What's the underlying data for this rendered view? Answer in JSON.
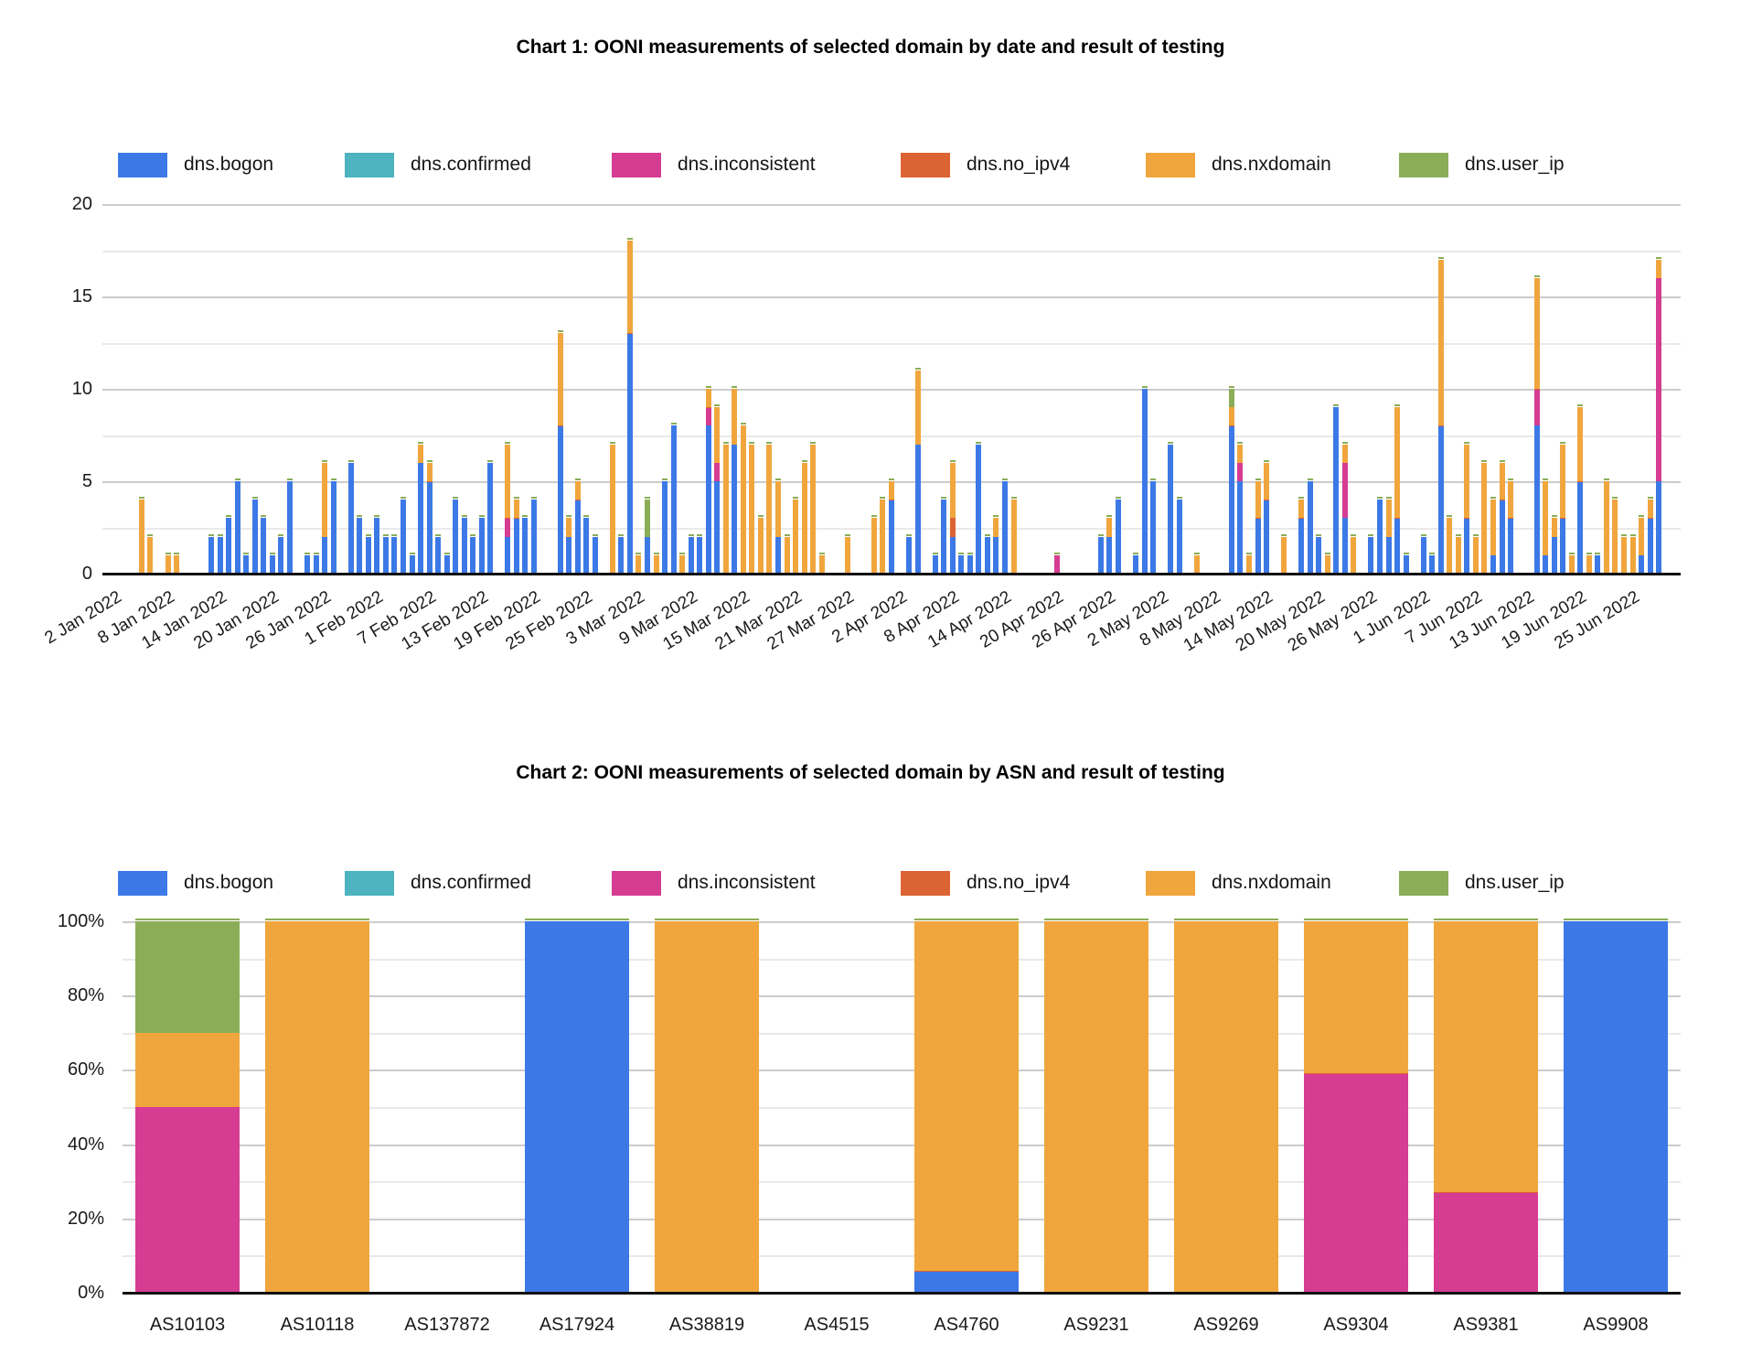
{
  "palette": {
    "bogon": "#3C79E6",
    "confirmed": "#4DB3BF",
    "inconsistent": "#D53C92",
    "no_ipv4": "#DC6333",
    "nxdomain": "#F0A63D",
    "user_ip": "#8BAD58"
  },
  "legend": {
    "items": [
      {
        "key": "bogon",
        "label": "dns.bogon"
      },
      {
        "key": "confirmed",
        "label": "dns.confirmed"
      },
      {
        "key": "inconsistent",
        "label": "dns.inconsistent"
      },
      {
        "key": "no_ipv4",
        "label": "dns.no_ipv4"
      },
      {
        "key": "nxdomain",
        "label": "dns.nxdomain"
      },
      {
        "key": "user_ip",
        "label": "dns.user_ip"
      }
    ]
  },
  "chart_data": [
    {
      "type": "bar",
      "stacked": true,
      "title": "Chart 1: OONI measurements of selected domain by date and result of testing",
      "xlabel": "",
      "ylabel": "",
      "ylim": [
        0,
        20
      ],
      "y_ticks": [
        0,
        5,
        10,
        15,
        20
      ],
      "grid": true,
      "legend_position": "top",
      "date_range_days": 181,
      "x_tick_days": [
        1,
        7,
        13,
        19,
        25,
        31,
        37,
        43,
        49,
        55,
        61,
        67,
        73,
        79,
        85,
        91,
        97,
        103,
        109,
        115,
        121,
        127,
        133,
        139,
        145,
        151,
        157,
        163,
        169,
        175
      ],
      "x_tick_labels": [
        "2 Jan 2022",
        "8 Jan 2022",
        "14 Jan 2022",
        "20 Jan 2022",
        "26 Jan 2022",
        "1 Feb 2022",
        "7 Feb 2022",
        "13 Feb 2022",
        "19 Feb 2022",
        "25 Feb 2022",
        "3 Mar 2022",
        "9 Mar 2022",
        "15 Mar 2022",
        "21 Mar 2022",
        "27 Mar 2022",
        "2 Apr 2022",
        "8 Apr 2022",
        "14 Apr 2022",
        "20 Apr 2022",
        "26 Apr 2022",
        "2 May 2022",
        "8 May 2022",
        "14 May 2022",
        "20 May 2022",
        "26 May 2022",
        "1 Jun 2022",
        "7 Jun 2022",
        "13 Jun 2022",
        "19 Jun 2022",
        "25 Jun 2022"
      ],
      "series_order": [
        "bogon",
        "confirmed",
        "inconsistent",
        "no_ipv4",
        "nxdomain",
        "user_ip"
      ],
      "bars": [
        {
          "d": 4,
          "nxdomain": 4
        },
        {
          "d": 5,
          "nxdomain": 2
        },
        {
          "d": 7,
          "nxdomain": 1
        },
        {
          "d": 8,
          "nxdomain": 1
        },
        {
          "d": 12,
          "bogon": 2
        },
        {
          "d": 13,
          "bogon": 2
        },
        {
          "d": 14,
          "bogon": 3
        },
        {
          "d": 15,
          "bogon": 5
        },
        {
          "d": 16,
          "bogon": 1
        },
        {
          "d": 17,
          "bogon": 4
        },
        {
          "d": 18,
          "bogon": 3
        },
        {
          "d": 19,
          "bogon": 1
        },
        {
          "d": 20,
          "bogon": 2
        },
        {
          "d": 21,
          "bogon": 5
        },
        {
          "d": 23,
          "bogon": 1
        },
        {
          "d": 24,
          "bogon": 1
        },
        {
          "d": 25,
          "bogon": 2,
          "nxdomain": 4
        },
        {
          "d": 26,
          "bogon": 5
        },
        {
          "d": 28,
          "bogon": 6
        },
        {
          "d": 29,
          "bogon": 3
        },
        {
          "d": 30,
          "bogon": 2
        },
        {
          "d": 31,
          "bogon": 3
        },
        {
          "d": 32,
          "bogon": 2
        },
        {
          "d": 33,
          "bogon": 2
        },
        {
          "d": 34,
          "bogon": 4
        },
        {
          "d": 35,
          "bogon": 1
        },
        {
          "d": 36,
          "bogon": 6,
          "nxdomain": 1
        },
        {
          "d": 37,
          "bogon": 5,
          "nxdomain": 1
        },
        {
          "d": 38,
          "bogon": 2
        },
        {
          "d": 39,
          "bogon": 1
        },
        {
          "d": 40,
          "bogon": 4
        },
        {
          "d": 41,
          "bogon": 3
        },
        {
          "d": 42,
          "bogon": 2
        },
        {
          "d": 43,
          "bogon": 3
        },
        {
          "d": 44,
          "bogon": 6
        },
        {
          "d": 46,
          "bogon": 2,
          "inconsistent": 1,
          "nxdomain": 4
        },
        {
          "d": 47,
          "bogon": 3,
          "nxdomain": 1
        },
        {
          "d": 48,
          "bogon": 3
        },
        {
          "d": 49,
          "bogon": 4
        },
        {
          "d": 52,
          "bogon": 8,
          "nxdomain": 5
        },
        {
          "d": 53,
          "bogon": 2,
          "nxdomain": 1
        },
        {
          "d": 54,
          "bogon": 4,
          "nxdomain": 1
        },
        {
          "d": 55,
          "bogon": 3
        },
        {
          "d": 56,
          "bogon": 2
        },
        {
          "d": 58,
          "nxdomain": 7
        },
        {
          "d": 59,
          "bogon": 2
        },
        {
          "d": 60,
          "bogon": 13,
          "nxdomain": 5
        },
        {
          "d": 61,
          "nxdomain": 1
        },
        {
          "d": 62,
          "bogon": 2,
          "user_ip": 2
        },
        {
          "d": 63,
          "nxdomain": 1
        },
        {
          "d": 64,
          "bogon": 5
        },
        {
          "d": 65,
          "bogon": 8
        },
        {
          "d": 66,
          "nxdomain": 1
        },
        {
          "d": 67,
          "bogon": 2
        },
        {
          "d": 68,
          "bogon": 2
        },
        {
          "d": 69,
          "bogon": 8,
          "inconsistent": 1,
          "nxdomain": 1
        },
        {
          "d": 70,
          "bogon": 5,
          "inconsistent": 1,
          "nxdomain": 3
        },
        {
          "d": 71,
          "nxdomain": 7
        },
        {
          "d": 72,
          "bogon": 7,
          "nxdomain": 3
        },
        {
          "d": 73,
          "nxdomain": 8
        },
        {
          "d": 74,
          "nxdomain": 7
        },
        {
          "d": 75,
          "nxdomain": 3
        },
        {
          "d": 76,
          "nxdomain": 7
        },
        {
          "d": 77,
          "bogon": 2,
          "nxdomain": 3
        },
        {
          "d": 78,
          "nxdomain": 2
        },
        {
          "d": 79,
          "nxdomain": 4
        },
        {
          "d": 80,
          "nxdomain": 6
        },
        {
          "d": 81,
          "nxdomain": 7
        },
        {
          "d": 82,
          "nxdomain": 1
        },
        {
          "d": 85,
          "nxdomain": 2
        },
        {
          "d": 88,
          "nxdomain": 3
        },
        {
          "d": 89,
          "nxdomain": 4
        },
        {
          "d": 90,
          "bogon": 4,
          "nxdomain": 1
        },
        {
          "d": 92,
          "bogon": 2
        },
        {
          "d": 93,
          "bogon": 7,
          "nxdomain": 4
        },
        {
          "d": 95,
          "bogon": 1
        },
        {
          "d": 96,
          "bogon": 4
        },
        {
          "d": 97,
          "bogon": 2,
          "no_ipv4": 1,
          "nxdomain": 3
        },
        {
          "d": 98,
          "bogon": 1
        },
        {
          "d": 99,
          "bogon": 1
        },
        {
          "d": 100,
          "bogon": 7
        },
        {
          "d": 101,
          "bogon": 2
        },
        {
          "d": 102,
          "bogon": 2,
          "nxdomain": 1
        },
        {
          "d": 103,
          "bogon": 5
        },
        {
          "d": 104,
          "nxdomain": 4
        },
        {
          "d": 109,
          "inconsistent": 1
        },
        {
          "d": 114,
          "bogon": 2
        },
        {
          "d": 115,
          "bogon": 2,
          "nxdomain": 1
        },
        {
          "d": 116,
          "bogon": 4
        },
        {
          "d": 118,
          "bogon": 1
        },
        {
          "d": 119,
          "bogon": 10
        },
        {
          "d": 120,
          "bogon": 5
        },
        {
          "d": 122,
          "bogon": 7
        },
        {
          "d": 123,
          "bogon": 4
        },
        {
          "d": 125,
          "nxdomain": 1
        },
        {
          "d": 129,
          "bogon": 8,
          "nxdomain": 1,
          "user_ip": 1
        },
        {
          "d": 130,
          "bogon": 5,
          "inconsistent": 1,
          "nxdomain": 1
        },
        {
          "d": 131,
          "nxdomain": 1
        },
        {
          "d": 132,
          "bogon": 3,
          "nxdomain": 2
        },
        {
          "d": 133,
          "bogon": 4,
          "nxdomain": 2
        },
        {
          "d": 135,
          "nxdomain": 2
        },
        {
          "d": 137,
          "bogon": 3,
          "nxdomain": 1
        },
        {
          "d": 138,
          "bogon": 5
        },
        {
          "d": 139,
          "bogon": 2
        },
        {
          "d": 140,
          "nxdomain": 1
        },
        {
          "d": 141,
          "bogon": 9
        },
        {
          "d": 142,
          "bogon": 3,
          "inconsistent": 3,
          "nxdomain": 1
        },
        {
          "d": 143,
          "nxdomain": 2
        },
        {
          "d": 145,
          "bogon": 2
        },
        {
          "d": 146,
          "bogon": 4
        },
        {
          "d": 147,
          "bogon": 2,
          "nxdomain": 2
        },
        {
          "d": 148,
          "bogon": 3,
          "nxdomain": 6
        },
        {
          "d": 149,
          "bogon": 1
        },
        {
          "d": 151,
          "bogon": 2
        },
        {
          "d": 152,
          "bogon": 1
        },
        {
          "d": 153,
          "bogon": 8,
          "nxdomain": 9
        },
        {
          "d": 154,
          "nxdomain": 3
        },
        {
          "d": 155,
          "nxdomain": 2
        },
        {
          "d": 156,
          "bogon": 3,
          "nxdomain": 4
        },
        {
          "d": 157,
          "nxdomain": 2
        },
        {
          "d": 158,
          "nxdomain": 6
        },
        {
          "d": 159,
          "bogon": 1,
          "nxdomain": 3
        },
        {
          "d": 160,
          "bogon": 4,
          "nxdomain": 2
        },
        {
          "d": 161,
          "bogon": 3,
          "nxdomain": 2
        },
        {
          "d": 164,
          "bogon": 8,
          "inconsistent": 2,
          "nxdomain": 6
        },
        {
          "d": 165,
          "bogon": 1,
          "nxdomain": 4
        },
        {
          "d": 166,
          "bogon": 2,
          "nxdomain": 1
        },
        {
          "d": 167,
          "bogon": 3,
          "nxdomain": 4
        },
        {
          "d": 168,
          "nxdomain": 1
        },
        {
          "d": 169,
          "bogon": 5,
          "nxdomain": 4
        },
        {
          "d": 170,
          "nxdomain": 1
        },
        {
          "d": 171,
          "bogon": 1
        },
        {
          "d": 172,
          "nxdomain": 5
        },
        {
          "d": 173,
          "nxdomain": 4
        },
        {
          "d": 174,
          "nxdomain": 2
        },
        {
          "d": 175,
          "nxdomain": 2
        },
        {
          "d": 176,
          "bogon": 1,
          "nxdomain": 2
        },
        {
          "d": 177,
          "bogon": 3,
          "nxdomain": 1
        },
        {
          "d": 178,
          "bogon": 5,
          "inconsistent": 11,
          "nxdomain": 1
        }
      ]
    },
    {
      "type": "bar",
      "stacked": "percent",
      "title": "Chart 2: OONI measurements of selected domain by ASN and result of testing",
      "xlabel": "",
      "ylabel": "",
      "ylim": [
        0,
        100
      ],
      "y_ticks": [
        0,
        20,
        40,
        60,
        80,
        100
      ],
      "y_tick_labels": [
        "0%",
        "20%",
        "40%",
        "60%",
        "80%",
        "100%"
      ],
      "grid": true,
      "legend_position": "top",
      "categories": [
        "AS10103",
        "AS10118",
        "AS137872",
        "AS17924",
        "AS38819",
        "AS4515",
        "AS4760",
        "AS9231",
        "AS9269",
        "AS9304",
        "AS9381",
        "AS9908"
      ],
      "series_order": [
        "bogon",
        "confirmed",
        "inconsistent",
        "no_ipv4",
        "nxdomain",
        "user_ip"
      ],
      "bars": [
        {
          "category": "AS10103",
          "inconsistent": 50,
          "nxdomain": 20,
          "user_ip": 30
        },
        {
          "category": "AS10118",
          "nxdomain": 100
        },
        {
          "category": "AS17924",
          "bogon": 100
        },
        {
          "category": "AS38819",
          "nxdomain": 100
        },
        {
          "category": "AS4760",
          "bogon": 6,
          "nxdomain": 94
        },
        {
          "category": "AS9231",
          "nxdomain": 100
        },
        {
          "category": "AS9269",
          "nxdomain": 100
        },
        {
          "category": "AS9304",
          "inconsistent": 59,
          "nxdomain": 41
        },
        {
          "category": "AS9381",
          "inconsistent": 27,
          "nxdomain": 73
        },
        {
          "category": "AS9908",
          "bogon": 100
        }
      ],
      "red_junction_categories": [
        "AS4760",
        "AS9304",
        "AS9381"
      ]
    }
  ]
}
